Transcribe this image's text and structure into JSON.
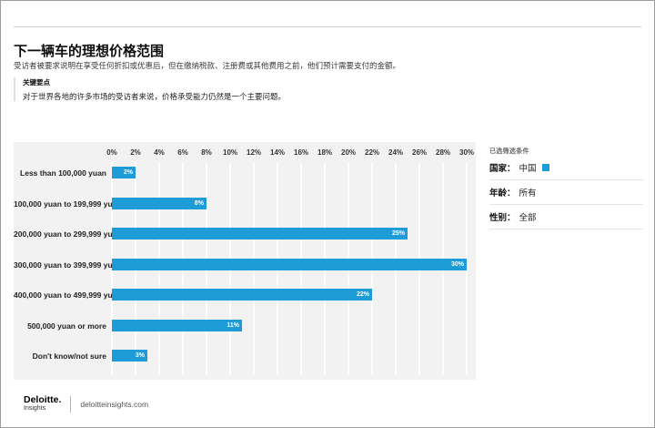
{
  "page": {
    "title": "下一辆车的理想价格范围",
    "subtitle": "受访者被要求说明在享受任何折扣或优惠后，但在缴纳税款、注册费或其他费用之前，他们预计需要支付的金额。",
    "keypoint_heading": "关键要点",
    "keypoint_text": "对于世界各地的许多市场的受访者来说，价格承受能力仍然是一个主要问题。"
  },
  "chart_data": {
    "type": "bar",
    "orientation": "horizontal",
    "categories": [
      "Less than 100,000 yuan",
      "100,000 yuan to 199,999 yuan",
      "200,000 yuan to 299,999 yuan",
      "300,000 yuan to 399,999 yuan",
      "400,000 yuan to 499,999 yuan",
      "500,000 yuan or more",
      "Don't know/not sure"
    ],
    "values": [
      2,
      8,
      25,
      30,
      22,
      11,
      3
    ],
    "value_labels": [
      "2%",
      "8%",
      "25%",
      "30%",
      "22%",
      "11%",
      "3%"
    ],
    "x_ticks": [
      "0%",
      "2%",
      "4%",
      "6%",
      "8%",
      "10%",
      "12%",
      "14%",
      "16%",
      "18%",
      "20%",
      "22%",
      "24%",
      "26%",
      "28%",
      "30%"
    ],
    "xlim": [
      0,
      30
    ],
    "grid": true,
    "bar_color": "#1e9cd7",
    "plot_bg": "#f2f2f2"
  },
  "filters": {
    "heading": "已选筛选条件",
    "rows": [
      {
        "label": "国家：",
        "value": "中国",
        "swatch": "#1e9cd7"
      },
      {
        "label": "年龄：",
        "value": "所有"
      },
      {
        "label": "性别：",
        "value": "全部"
      }
    ]
  },
  "footer": {
    "brand": "Deloitte.",
    "brand_sub": "Insights",
    "site": "deloitteinsights.com"
  }
}
